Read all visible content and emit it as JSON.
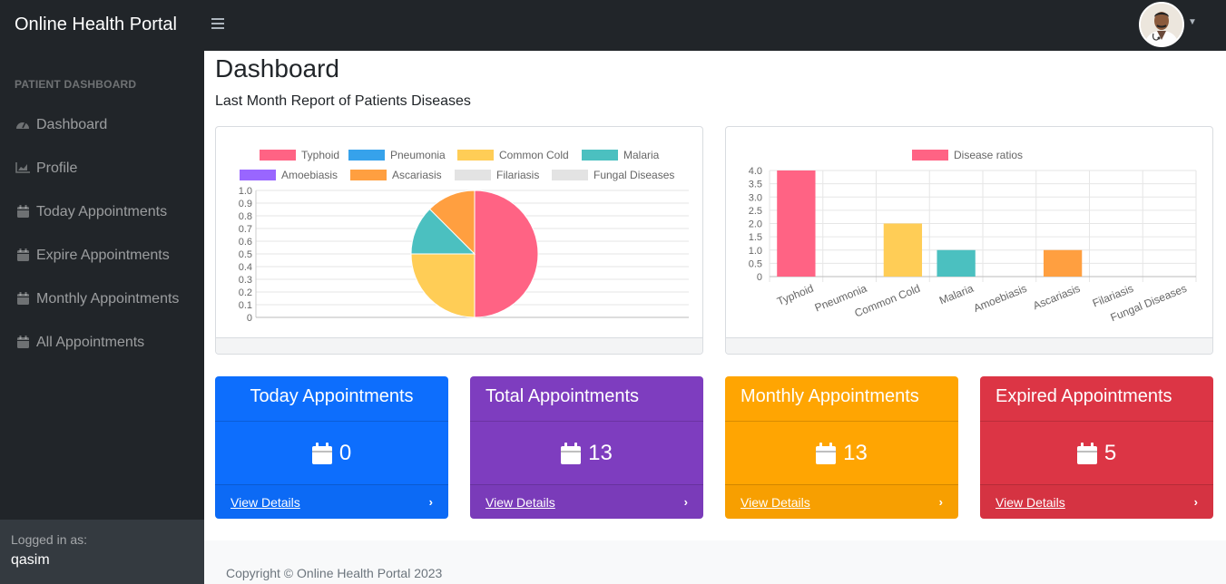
{
  "app": {
    "title": "Online Health Portal"
  },
  "sidebar": {
    "heading": "PATIENT DASHBOARD",
    "items": [
      {
        "label": "Dashboard",
        "icon": "dashboard-icon"
      },
      {
        "label": "Profile",
        "icon": "chart-icon"
      },
      {
        "label": "Today Appointments",
        "icon": "calendar-icon"
      },
      {
        "label": "Expire Appointments",
        "icon": "calendar-icon"
      },
      {
        "label": "Monthly Appointments",
        "icon": "calendar-icon"
      },
      {
        "label": "All Appointments",
        "icon": "calendar-icon"
      }
    ],
    "footer": {
      "label": "Logged in as:",
      "user": "qasim"
    }
  },
  "main": {
    "title": "Dashboard",
    "subtitle": "Last Month Report of Patients Diseases"
  },
  "chart_data": [
    {
      "type": "pie",
      "categories": [
        "Typhoid",
        "Pneumonia",
        "Common Cold",
        "Malaria",
        "Amoebiasis",
        "Ascariasis",
        "Filariasis",
        "Fungal Diseases"
      ],
      "values": [
        4,
        0,
        2,
        1,
        0,
        1,
        0,
        0
      ],
      "colors": [
        "#ff6384",
        "#36a2eb",
        "#ffcd56",
        "#4bc0c0",
        "#9966ff",
        "#ff9f40",
        "#e3e3e3",
        "#e3e3e3"
      ],
      "yticks": [
        "0",
        "0.1",
        "0.2",
        "0.3",
        "0.4",
        "0.5",
        "0.6",
        "0.7",
        "0.8",
        "0.9",
        "1.0"
      ],
      "legend": "top",
      "grid": true
    },
    {
      "type": "bar",
      "categories": [
        "Typhoid",
        "Pneumonia",
        "Common Cold",
        "Malaria",
        "Amoebiasis",
        "Ascariasis",
        "Filariasis",
        "Fungal Diseases"
      ],
      "series": [
        {
          "name": "Disease ratios",
          "values": [
            4,
            0,
            2,
            1,
            0,
            1,
            0,
            0
          ]
        }
      ],
      "colors": [
        "#ff6384",
        "#36a2eb",
        "#ffcd56",
        "#4bc0c0",
        "#9966ff",
        "#ff9f40",
        "#e3e3e3",
        "#e3e3e3"
      ],
      "legend_color": "#ff6384",
      "yticks": [
        "0",
        "0.5",
        "1.0",
        "1.5",
        "2.0",
        "2.5",
        "3.0",
        "3.5",
        "4.0"
      ],
      "ylim": [
        0,
        4
      ],
      "legend": "top",
      "grid": true
    }
  ],
  "stats": [
    {
      "title": "Today Appointments",
      "value": "0",
      "link": "View Details",
      "color": "#0d6efd",
      "icon": "calendar-icon"
    },
    {
      "title": "Total Appointments",
      "value": "13",
      "link": "View Details",
      "color": "#7e3dbf",
      "icon": "calendar-icon"
    },
    {
      "title": "Monthly Appointments",
      "value": "13",
      "link": "View Details",
      "color": "#ffa502",
      "icon": "calendar-icon"
    },
    {
      "title": "Expired Appointments",
      "value": "5",
      "link": "View Details",
      "color": "#dc3545",
      "icon": "calendar-icon"
    }
  ],
  "footer": {
    "text": "Copyright © Online Health Portal 2023"
  }
}
